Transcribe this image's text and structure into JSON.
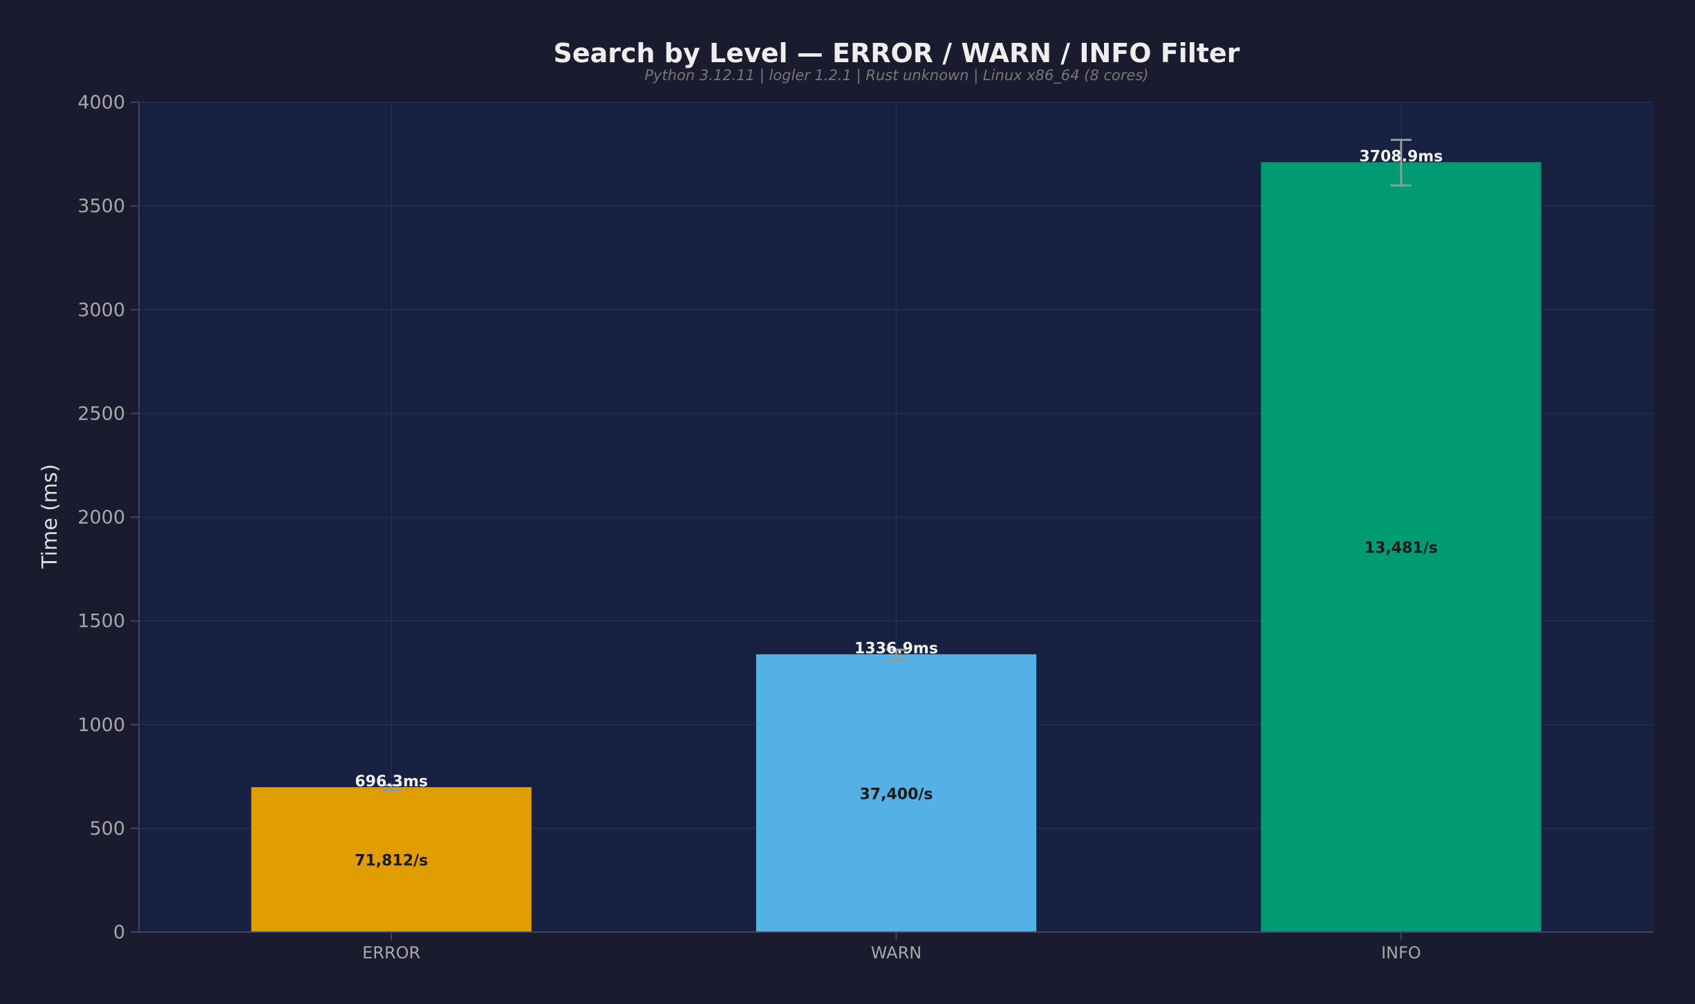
{
  "chart_data": {
    "type": "bar",
    "title": "Search by Level — ERROR / WARN / INFO Filter",
    "subtitle": "Python 3.12.11 | logler 1.2.1 | Rust unknown | Linux x86_64 (8 cores)",
    "ylabel": "Time (ms)",
    "xlabel": "",
    "ylim": [
      0,
      4000
    ],
    "yticks": [
      0,
      500,
      1000,
      1500,
      2000,
      2500,
      3000,
      3500,
      4000
    ],
    "grid": true,
    "categories": [
      "ERROR",
      "WARN",
      "INFO"
    ],
    "values": [
      696.3,
      1336.9,
      3708.9
    ],
    "error": [
      12,
      25,
      110
    ],
    "value_labels": [
      "696.3ms",
      "1336.9ms",
      "3708.9ms"
    ],
    "rate_labels": [
      "71,812/s",
      "37,400/s",
      "13,481/s"
    ],
    "colors": [
      "#e5a000",
      "#56b4e9",
      "#009e73"
    ]
  },
  "theme": {
    "background": "#1b1b2f",
    "plot_background": "#162040",
    "grid_color": "#243050",
    "axis_color": "#3d4466",
    "errorbar_color": "#999999"
  }
}
